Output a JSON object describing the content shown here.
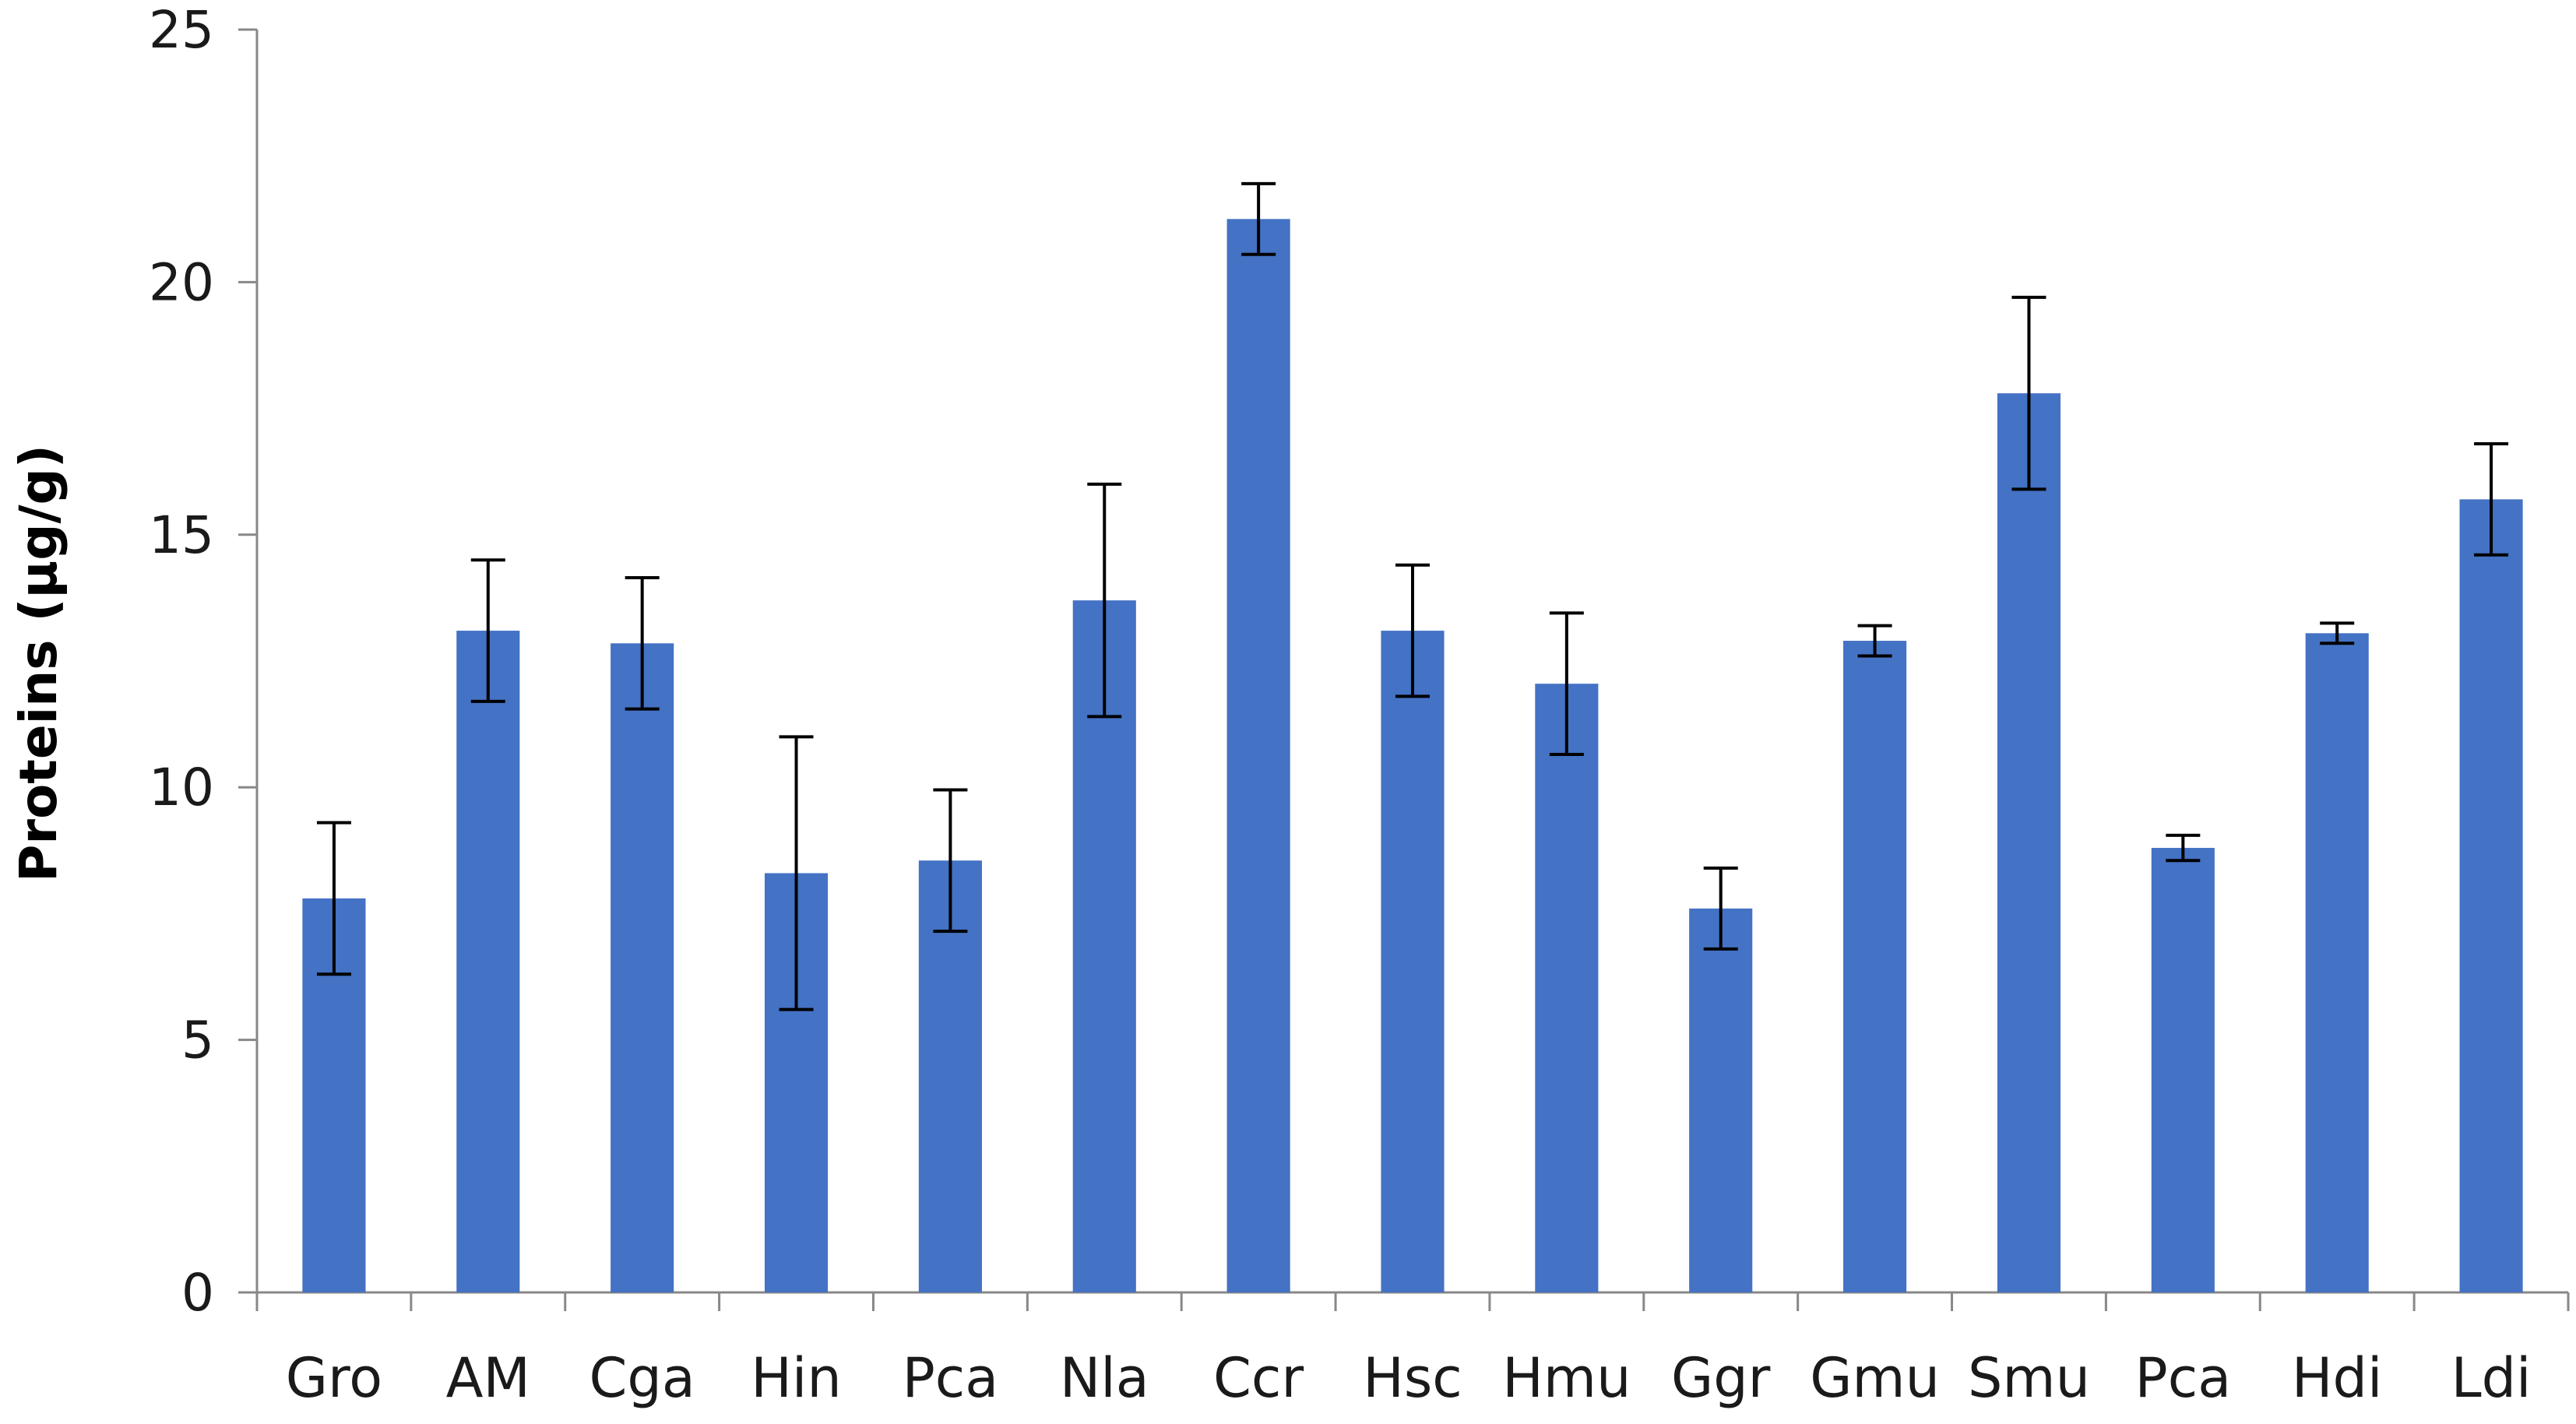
{
  "chart_data": {
    "type": "bar",
    "title": "",
    "xlabel": "",
    "ylabel": "Proteins (µg/g)",
    "ylim": [
      0,
      25
    ],
    "yticks": [
      0,
      5,
      10,
      15,
      20,
      25
    ],
    "grid": false,
    "legend": "none",
    "bar_color": "#4472C4",
    "axis_color": "#888888",
    "errorbar_color": "#000000",
    "categories": [
      "Gro",
      "AM",
      "Cga",
      "Hin",
      "Pca",
      "Nla",
      "Ccr",
      "Hsc",
      "Hmu",
      "Ggr",
      "Gmu",
      "Smu",
      "Pca",
      "Hdi",
      "Ldi"
    ],
    "values": [
      7.8,
      13.1,
      12.85,
      8.3,
      8.55,
      13.7,
      21.25,
      13.1,
      12.05,
      7.6,
      12.9,
      17.8,
      8.8,
      13.05,
      15.7
    ],
    "errors": [
      1.5,
      1.4,
      1.3,
      2.7,
      1.4,
      2.3,
      0.7,
      1.3,
      1.4,
      0.8,
      0.3,
      1.9,
      0.25,
      0.2,
      1.1
    ]
  }
}
